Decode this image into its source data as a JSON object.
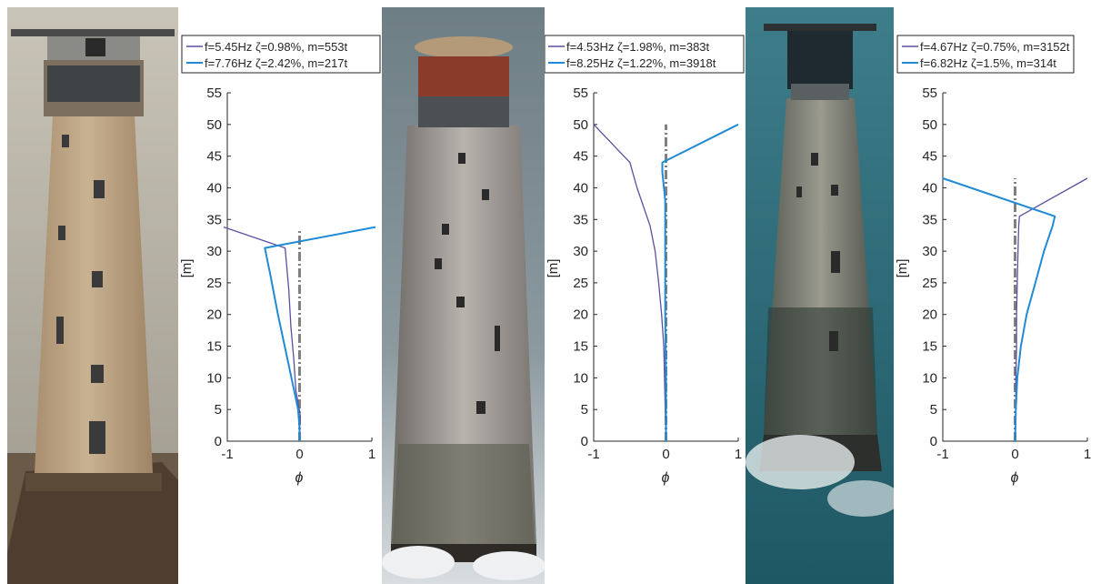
{
  "colors": {
    "mode1": "#5a4fa2",
    "mode2": "#1f8ad6",
    "reference": "#808080",
    "axis": "#262626"
  },
  "axis_labels": {
    "ylabel": "[m]",
    "xlabel": "ϕ"
  },
  "chart_data": [
    {
      "type": "line",
      "title": "",
      "xlabel": "ϕ",
      "ylabel": "[m]",
      "xlim": [
        -1,
        1
      ],
      "ylim": [
        0,
        55
      ],
      "xticks": [
        "-1",
        "0",
        "1"
      ],
      "yticks": [
        "0",
        "5",
        "10",
        "15",
        "20",
        "25",
        "30",
        "35",
        "40",
        "45",
        "50",
        "55"
      ],
      "grid": false,
      "legend_position": "top",
      "series": [
        {
          "name": "f=5.45Hz ζ=0.98%, m=553t",
          "points": [
            [
              0,
              0
            ],
            [
              0,
              1.8
            ],
            [
              0.01,
              4
            ],
            [
              -0.05,
              8
            ],
            [
              -0.08,
              13
            ],
            [
              -0.12,
              18
            ],
            [
              -0.15,
              24
            ],
            [
              -0.2,
              30.5
            ],
            [
              -1.05,
              33.8
            ]
          ]
        },
        {
          "name": "f=7.76Hz ζ=2.42%, m=217t",
          "points": [
            [
              0,
              0
            ],
            [
              0,
              2
            ],
            [
              -0.02,
              5
            ],
            [
              -0.15,
              12
            ],
            [
              -0.3,
              20
            ],
            [
              -0.4,
              26
            ],
            [
              -0.48,
              30.5
            ],
            [
              1.05,
              33.8
            ]
          ]
        },
        {
          "name": "",
          "points": [
            [
              0,
              0
            ],
            [
              0,
              33.5
            ]
          ]
        }
      ]
    },
    {
      "type": "line",
      "title": "",
      "xlabel": "ϕ",
      "ylabel": "[m]",
      "xlim": [
        -1,
        1
      ],
      "ylim": [
        0,
        55
      ],
      "xticks": [
        "-1",
        "0",
        "1"
      ],
      "yticks": [
        "0",
        "5",
        "10",
        "15",
        "20",
        "25",
        "30",
        "35",
        "40",
        "45",
        "50",
        "55"
      ],
      "grid": false,
      "legend_position": "top",
      "series": [
        {
          "name": "f=4.53Hz ζ=1.98%, m=383t",
          "points": [
            [
              0,
              0
            ],
            [
              -0.01,
              5
            ],
            [
              -0.02,
              10
            ],
            [
              -0.03,
              15
            ],
            [
              -0.06,
              20
            ],
            [
              -0.1,
              25
            ],
            [
              -0.15,
              30
            ],
            [
              -0.22,
              34
            ],
            [
              -0.4,
              40
            ],
            [
              -0.5,
              44
            ],
            [
              -1.0,
              50
            ]
          ]
        },
        {
          "name": "f=8.25Hz ζ=1.22%, m=3918t",
          "points": [
            [
              0,
              0
            ],
            [
              0,
              10
            ],
            [
              -0.01,
              20
            ],
            [
              -0.01,
              30
            ],
            [
              -0.01,
              38
            ],
            [
              -0.05,
              42.5
            ],
            [
              -0.05,
              44
            ],
            [
              1.0,
              50
            ]
          ]
        },
        {
          "name": "",
          "points": [
            [
              0,
              0
            ],
            [
              0,
              50
            ]
          ]
        }
      ]
    },
    {
      "type": "line",
      "title": "",
      "xlabel": "ϕ",
      "ylabel": "[m]",
      "xlim": [
        -1,
        1
      ],
      "ylim": [
        0,
        55
      ],
      "xticks": [
        "-1",
        "0",
        "1"
      ],
      "yticks": [
        "0",
        "5",
        "10",
        "15",
        "20",
        "25",
        "30",
        "35",
        "40",
        "45",
        "50",
        "55"
      ],
      "grid": false,
      "legend_position": "top",
      "series": [
        {
          "name": "f=4.67Hz ζ=0.75%, m=3152t",
          "points": [
            [
              0,
              0
            ],
            [
              0.01,
              5
            ],
            [
              0.01,
              10
            ],
            [
              0.02,
              15
            ],
            [
              0.02,
              20
            ],
            [
              0.03,
              25
            ],
            [
              0.04,
              30
            ],
            [
              0.05,
              34
            ],
            [
              0.06,
              35.5
            ],
            [
              1.0,
              41.5
            ]
          ]
        },
        {
          "name": "f=6.82Hz ζ=1.5%, m=314t",
          "points": [
            [
              0,
              0
            ],
            [
              0.01,
              5
            ],
            [
              0.03,
              10
            ],
            [
              0.08,
              15
            ],
            [
              0.16,
              20
            ],
            [
              0.28,
              25
            ],
            [
              0.4,
              30
            ],
            [
              0.52,
              34
            ],
            [
              0.55,
              35.5
            ],
            [
              -1.0,
              41.5
            ]
          ]
        },
        {
          "name": "",
          "points": [
            [
              0,
              0
            ],
            [
              0,
              41.5
            ]
          ]
        }
      ]
    }
  ]
}
